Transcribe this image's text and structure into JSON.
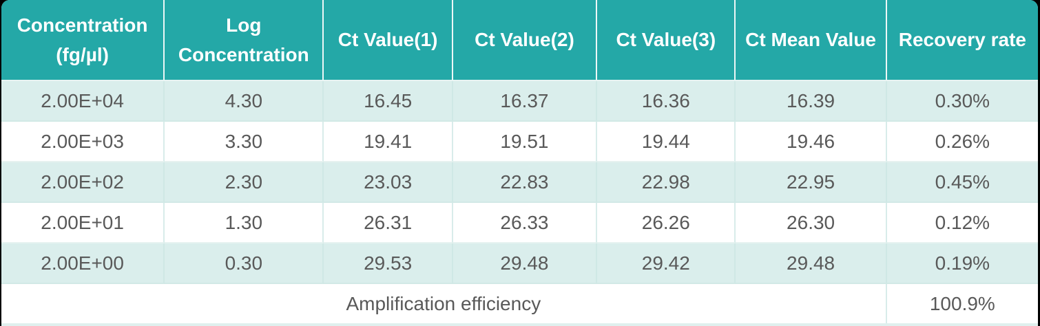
{
  "theme": {
    "header_bg": "#24a8a7",
    "header_text": "#ffffff",
    "row_alt_bg": "#daeeec",
    "row_bg": "#ffffff",
    "body_text": "#595959",
    "divider": "#d8ecea",
    "outer_bg": "#000000"
  },
  "table": {
    "headers": [
      "Concentration\n(fg/µl)",
      "Log\nConcentration",
      "Ct Value(1)",
      "Ct Value(2)",
      "Ct Value(3)",
      "Ct Mean Value",
      "Recovery rate"
    ],
    "rows": [
      [
        "2.00E+04",
        "4.30",
        "16.45",
        "16.37",
        "16.36",
        "16.39",
        "0.30%"
      ],
      [
        "2.00E+03",
        "3.30",
        "19.41",
        "19.51",
        "19.44",
        "19.46",
        "0.26%"
      ],
      [
        "2.00E+02",
        "2.30",
        "23.03",
        "22.83",
        "22.98",
        "22.95",
        "0.45%"
      ],
      [
        "2.00E+01",
        "1.30",
        "26.31",
        "26.33",
        "26.26",
        "26.30",
        "0.12%"
      ],
      [
        "2.00E+00",
        "0.30",
        "29.53",
        "29.48",
        "29.42",
        "29.48",
        "0.19%"
      ]
    ],
    "footer": {
      "label": "Amplification efficiency",
      "value": "100.9%"
    }
  }
}
